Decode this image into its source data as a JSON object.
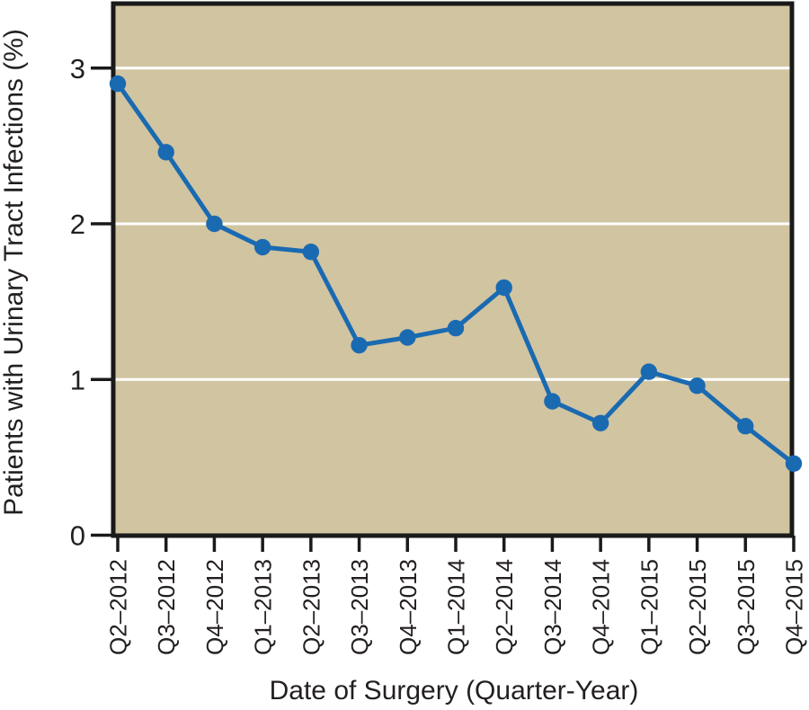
{
  "chart_data": {
    "type": "line",
    "title": "",
    "xlabel": "Date of Surgery (Quarter-Year)",
    "ylabel": "Patients with Urinary Tract Infections (%)",
    "categories": [
      "Q2–2012",
      "Q3–2012",
      "Q4–2012",
      "Q1–2013",
      "Q2–2013",
      "Q3–2013",
      "Q4–2013",
      "Q1–2014",
      "Q2–2014",
      "Q3–2014",
      "Q4–2014",
      "Q1–2015",
      "Q2–2015",
      "Q3–2015",
      "Q4–2015"
    ],
    "series": [
      {
        "name": "Patients with urinary tract infections (%)",
        "values": [
          2.9,
          2.46,
          2.0,
          1.85,
          1.82,
          1.22,
          1.27,
          1.33,
          1.59,
          0.86,
          0.72,
          1.05,
          0.96,
          0.7,
          0.46
        ]
      }
    ],
    "yticks": [
      0,
      1,
      2,
      3
    ],
    "gridline_values": [
      1,
      2,
      3
    ],
    "ylim": [
      0,
      3.4
    ],
    "grid": true,
    "legend_position": "none",
    "marker": "circle",
    "x_tick_rotation": -90,
    "colors": {
      "line": "#1a6ab1",
      "marker": "#1a6ab1",
      "plot_background": "#d1c4a1",
      "gridline": "#ffffff",
      "axis": "#1a1a1a",
      "text": "#231f20"
    }
  }
}
